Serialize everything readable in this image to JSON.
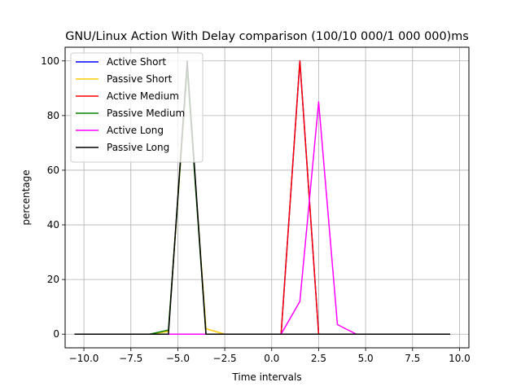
{
  "chart_data": {
    "type": "line",
    "title": "GNU/Linux Action With Delay comparison (100/10 000/1 000 000)ms",
    "xlabel": "Time intervals",
    "ylabel": "percentage",
    "xlim": [
      -11.0,
      10.5
    ],
    "ylim": [
      -5,
      105
    ],
    "grid": true,
    "legend_position": "top-left",
    "x_ticks": [
      -10,
      -7.5,
      -5,
      -2.5,
      0,
      2.5,
      5,
      7.5,
      10
    ],
    "x_tick_labels": [
      "−10.0",
      "−7.5",
      "−5.0",
      "−2.5",
      "0.0",
      "2.5",
      "5.0",
      "7.5",
      "10.0"
    ],
    "y_ticks": [
      0,
      20,
      40,
      60,
      80,
      100
    ],
    "y_tick_labels": [
      "0",
      "20",
      "40",
      "60",
      "80",
      "100"
    ],
    "x": [
      -10.5,
      -9.5,
      -8.5,
      -7.5,
      -6.5,
      -5.5,
      -4.5,
      -3.5,
      -2.5,
      -1.5,
      -0.5,
      0.5,
      1.5,
      2.5,
      3.5,
      4.5,
      5.5,
      6.5,
      7.5,
      8.5,
      9.5
    ],
    "series": [
      {
        "name": "Active Short",
        "color": "#0000ff",
        "values": [
          0,
          0,
          0,
          0,
          0,
          0,
          0,
          0,
          0,
          0,
          0,
          0,
          100,
          0,
          0,
          0,
          0,
          0,
          0,
          0,
          0
        ]
      },
      {
        "name": "Passive Short",
        "color": "#ffcc00",
        "values": [
          0,
          0,
          0,
          0,
          0,
          1,
          97,
          2,
          0,
          0,
          0,
          0,
          0,
          0,
          0,
          0,
          0,
          0,
          0,
          0,
          0
        ]
      },
      {
        "name": "Active Medium",
        "color": "#ff0000",
        "values": [
          0,
          0,
          0,
          0,
          0,
          0,
          0,
          0,
          0,
          0,
          0,
          0,
          100,
          0,
          0,
          0,
          0,
          0,
          0,
          0,
          0
        ]
      },
      {
        "name": "Passive Medium",
        "color": "#008000",
        "values": [
          0,
          0,
          0,
          0,
          0,
          1.5,
          97,
          0,
          0,
          0,
          0,
          0,
          0,
          0,
          0,
          0,
          0,
          0,
          0,
          0,
          0
        ]
      },
      {
        "name": "Active Long",
        "color": "#ff00ff",
        "values": [
          0,
          0,
          0,
          0,
          0,
          0,
          0,
          0,
          0,
          0,
          0,
          0,
          12,
          85,
          3.5,
          0,
          0,
          0,
          0,
          0,
          0
        ]
      },
      {
        "name": "Passive Long",
        "color": "#000000",
        "values": [
          0,
          0,
          0,
          0,
          0,
          0,
          100,
          0,
          0,
          0,
          0,
          0,
          0,
          0,
          0,
          0,
          0,
          0,
          0,
          0,
          0
        ]
      }
    ]
  }
}
